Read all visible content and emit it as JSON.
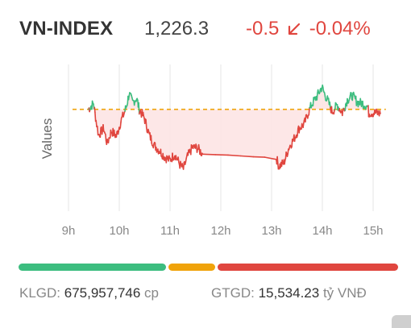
{
  "index": {
    "name": "VN-INDEX",
    "value": "1,226.3",
    "change": "-0.5",
    "change_pct": "-0.04%",
    "direction_icon": "arrow-down-left-icon"
  },
  "colors": {
    "up": "#3cbd7f",
    "down": "#e0463f",
    "reference": "#f0a30a",
    "fill_below": "#fde3e3"
  },
  "breadth_bar": {
    "segments": [
      {
        "name": "advancing",
        "color": "#3cbd7f"
      },
      {
        "name": "unchanged",
        "color": "#f0a30a"
      },
      {
        "name": "declining",
        "color": "#e0463f"
      }
    ]
  },
  "footer": {
    "volume_label": "KLGD:",
    "volume_value": "675,957,746",
    "volume_unit": "cp",
    "value_label": "GTGD:",
    "value_value": "15,534.23",
    "value_unit": "tỷ VNĐ"
  },
  "chart_data": {
    "type": "line",
    "ylabel": "Values",
    "xlabel": "",
    "x_ticks": [
      "9h",
      "10h",
      "11h",
      "12h",
      "13h",
      "14h",
      "15h"
    ],
    "reference": 1226.8,
    "ylim": [
      1215,
      1232
    ],
    "grid": "vertical",
    "series": [
      {
        "points": [
          [
            9.25,
            1226.8
          ],
          [
            9.35,
            1227.5
          ],
          [
            9.4,
            1225.5
          ],
          [
            9.45,
            1223.8
          ],
          [
            9.55,
            1224.6
          ],
          [
            9.62,
            1222.8
          ],
          [
            9.7,
            1224.3
          ],
          [
            9.8,
            1223.7
          ],
          [
            9.9,
            1225.6
          ],
          [
            9.95,
            1226.3
          ],
          [
            10.0,
            1227.2
          ],
          [
            10.05,
            1228.6
          ],
          [
            10.12,
            1227.6
          ],
          [
            10.2,
            1228.1
          ],
          [
            10.25,
            1226.8
          ],
          [
            10.35,
            1225.8
          ],
          [
            10.45,
            1223.8
          ],
          [
            10.55,
            1222.6
          ],
          [
            10.65,
            1222.0
          ],
          [
            10.75,
            1221.3
          ],
          [
            10.85,
            1220.9
          ],
          [
            10.95,
            1221.6
          ],
          [
            11.05,
            1220.4
          ],
          [
            11.12,
            1219.9
          ],
          [
            11.2,
            1221.3
          ],
          [
            11.3,
            1222.4
          ],
          [
            11.4,
            1222.3
          ],
          [
            11.5,
            1221.6
          ],
          [
            12.0,
            1221.5
          ],
          [
            12.5,
            1221.3
          ],
          [
            12.95,
            1221.2
          ],
          [
            13.0,
            1220.2
          ],
          [
            13.1,
            1220.6
          ],
          [
            13.2,
            1222.4
          ],
          [
            13.3,
            1223.4
          ],
          [
            13.4,
            1224.6
          ],
          [
            13.5,
            1225.1
          ],
          [
            13.58,
            1226.4
          ],
          [
            13.65,
            1227.4
          ],
          [
            13.75,
            1228.3
          ],
          [
            13.85,
            1229.4
          ],
          [
            13.9,
            1228.6
          ],
          [
            13.98,
            1227.6
          ],
          [
            14.05,
            1226.5
          ],
          [
            14.15,
            1227.3
          ],
          [
            14.25,
            1226.4
          ],
          [
            14.35,
            1227.9
          ],
          [
            14.45,
            1228.4
          ],
          [
            14.55,
            1227.6
          ],
          [
            14.65,
            1227.5
          ],
          [
            14.75,
            1227.1
          ],
          [
            14.77,
            1226.4
          ],
          [
            14.9,
            1226.4
          ],
          [
            15.0,
            1226.3
          ]
        ]
      }
    ]
  }
}
